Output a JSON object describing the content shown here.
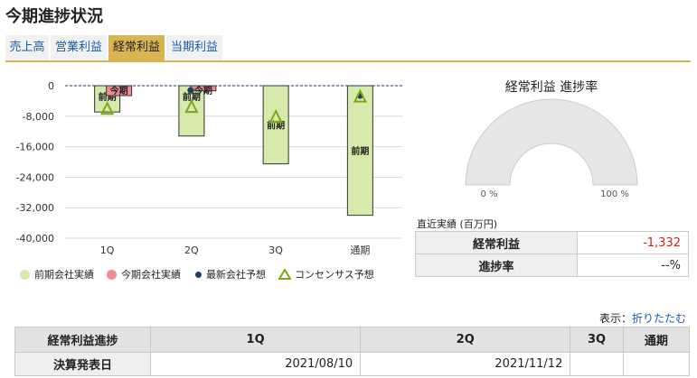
{
  "page_title": "今期進捗状況",
  "tabs": [
    {
      "label": "売上高",
      "active": false
    },
    {
      "label": "営業利益",
      "active": false
    },
    {
      "label": "経常利益",
      "active": true
    },
    {
      "label": "当期利益",
      "active": false
    }
  ],
  "chart_data": {
    "type": "bar",
    "categories": [
      "1Q",
      "2Q",
      "3Q",
      "通期"
    ],
    "ylim": [
      -40000,
      0
    ],
    "yticks": [
      "0",
      "-8,000",
      "-16,000",
      "-24,000",
      "-32,000",
      "-40,000"
    ],
    "series": [
      {
        "name": "前期会社実績",
        "values": [
          -6900,
          -13200,
          -20500,
          -34000
        ],
        "bar_label": "前期",
        "color": "#d6ebab"
      },
      {
        "name": "今期会社実績",
        "values": [
          -2600,
          -1332,
          null,
          null
        ],
        "bar_label": "今期",
        "color": "#f08d94"
      },
      {
        "name": "最新会社予想",
        "values": [
          null,
          -1200,
          null,
          -2600
        ],
        "color": "#1f3e63"
      },
      {
        "name": "コンセンサス予想",
        "values": [
          -6200,
          -5700,
          -8300,
          -3000
        ],
        "color": "#7aa818"
      }
    ]
  },
  "gauge": {
    "title": "経常利益 進捗率",
    "min_label": "0 %",
    "max_label": "100 %",
    "value_percent": null,
    "track_color": "#e6e6e6"
  },
  "recent": {
    "label": "直近実績 (百万円)",
    "rows": [
      {
        "label": "経常利益",
        "value": "-1,332"
      },
      {
        "label": "進捗率",
        "value": "--%"
      }
    ]
  },
  "display_option": {
    "prefix": "表示：",
    "link": "折りたたむ"
  },
  "progress_table": {
    "headers": [
      "経常利益進捗",
      "1Q",
      "2Q",
      "3Q",
      "通期"
    ],
    "rows": [
      {
        "label": "決算発表日",
        "cells": [
          "2021/08/10",
          "2021/11/12",
          "",
          ""
        ]
      }
    ]
  }
}
